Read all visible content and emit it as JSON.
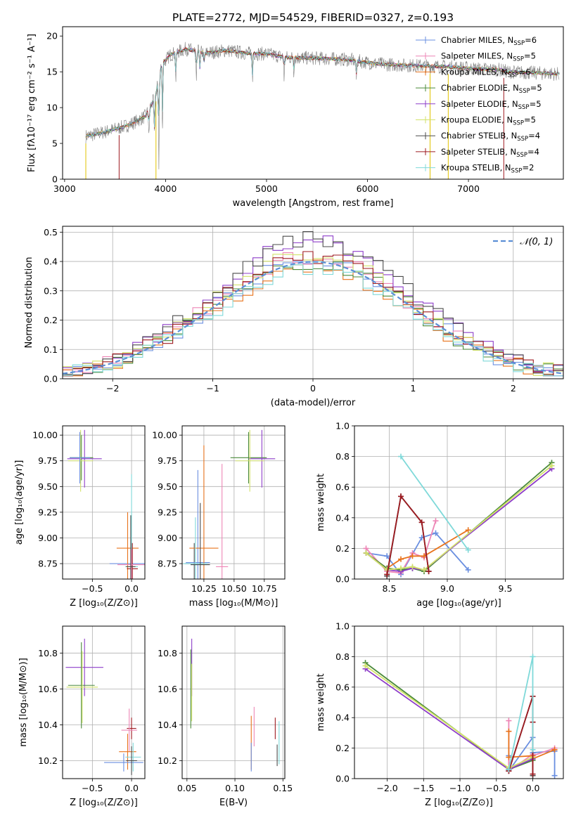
{
  "figure": {
    "title": "PLATE=2772, MJD=54529, FIBERID=0327, z=0.193"
  },
  "colors": {
    "chabrier_miles": "#6a8fe0",
    "salpeter_miles": "#ee86b6",
    "kroupa_miles": "#e8731c",
    "chabrier_elodie": "#4a8a3a",
    "salpeter_elodie": "#8e3ec9",
    "kroupa_elodie": "#d2e26a",
    "chabrier_stelib": "#4b4b4b",
    "salpeter_stelib": "#9e1a20",
    "kroupa_stelib": "#7fd9d9",
    "gauss": "#5b8fd6",
    "data": "#808080"
  },
  "chart_data": [
    {
      "id": "spectrum",
      "type": "line",
      "xlabel": "wavelength [Angstrom, rest frame]",
      "ylabel": "Flux [fλ10⁻¹⁷ erg cm⁻² s⁻¹ A⁻¹]",
      "xlim": [
        2980,
        7940
      ],
      "ylim": [
        0,
        21.3
      ],
      "xticks": [
        3000,
        4000,
        5000,
        6000,
        7000
      ],
      "yticks": [
        0,
        5,
        10,
        15,
        20
      ],
      "legend_position": "upper-right",
      "legend": [
        {
          "label": "Chabrier MILES, N",
          "sub": "SSP",
          "tail": "=6",
          "color": "#6a8fe0"
        },
        {
          "label": "Salpeter MILES, N",
          "sub": "SSP",
          "tail": "=5",
          "color": "#ee86b6"
        },
        {
          "label": "Kroupa MILES, N",
          "sub": "SSP",
          "tail": "=6",
          "color": "#e8731c"
        },
        {
          "label": "Chabrier ELODIE, N",
          "sub": "SSP",
          "tail": "=5",
          "color": "#4a8a3a"
        },
        {
          "label": "Salpeter ELODIE, N",
          "sub": "SSP",
          "tail": "=5",
          "color": "#8e3ec9"
        },
        {
          "label": "Kroupa ELODIE, N",
          "sub": "SSP",
          "tail": "=5",
          "color": "#d2e26a"
        },
        {
          "label": "Chabrier STELIB, N",
          "sub": "SSP",
          "tail": "=4",
          "color": "#4b4b4b"
        },
        {
          "label": "Salpeter STELIB, N",
          "sub": "SSP",
          "tail": "=4",
          "color": "#9e1a20"
        },
        {
          "label": "Kroupa STELIB, N",
          "sub": "SSP",
          "tail": "=2",
          "color": "#7fd9d9"
        }
      ],
      "continuum_knots": [
        [
          3210,
          6.0
        ],
        [
          3400,
          6.6
        ],
        [
          3600,
          7.4
        ],
        [
          3700,
          8.0
        ],
        [
          3800,
          8.8
        ],
        [
          3900,
          11.5
        ],
        [
          3960,
          16.0
        ],
        [
          4050,
          17.4
        ],
        [
          4200,
          18.2
        ],
        [
          4400,
          17.6
        ],
        [
          4600,
          18.0
        ],
        [
          4800,
          17.6
        ],
        [
          5000,
          17.5
        ],
        [
          5200,
          17.0
        ],
        [
          5500,
          16.9
        ],
        [
          5800,
          16.7
        ],
        [
          6100,
          16.1
        ],
        [
          6400,
          15.9
        ],
        [
          6800,
          15.7
        ],
        [
          7100,
          15.4
        ],
        [
          7300,
          15.3
        ],
        [
          7400,
          15.0
        ],
        [
          7900,
          14.7
        ]
      ],
      "absorption_features": [
        [
          3835,
          4.2
        ],
        [
          3889,
          5.5
        ],
        [
          3934,
          12
        ],
        [
          3969,
          9
        ],
        [
          4102,
          4
        ],
        [
          4305,
          5
        ],
        [
          4341,
          3
        ],
        [
          4383,
          2
        ],
        [
          4861,
          4
        ],
        [
          5175,
          3
        ],
        [
          5270,
          2
        ],
        [
          5890,
          2.5
        ]
      ],
      "model_starts": [
        3210,
        3210,
        3210,
        3210,
        3210,
        3210,
        3210,
        3540,
        3210
      ]
    },
    {
      "id": "residuals",
      "type": "histogram",
      "xlabel": "(data-model)/error",
      "ylabel": "Normed distribution",
      "xlim": [
        -2.5,
        2.5
      ],
      "ylim": [
        0,
        0.52
      ],
      "xticks": [
        -2,
        -1,
        0,
        1,
        2
      ],
      "yticks": [
        0.0,
        0.1,
        0.2,
        0.3,
        0.4,
        0.5
      ],
      "bin_width": 0.1,
      "legend": {
        "label": "𝒩(0, 1)",
        "position": "upper-right"
      },
      "series_peak_heights": [
        0.42,
        0.44,
        0.4,
        0.42,
        0.5,
        0.45,
        0.5,
        0.44,
        0.4
      ]
    },
    {
      "id": "age_vs_Z",
      "type": "errorbar",
      "xlabel": "Z [log₁₀(Z/Z⊙)]",
      "ylabel": "age  [log₁₀(age/yr)]",
      "xlim": [
        -0.88,
        0.17
      ],
      "ylim": [
        8.6,
        10.09
      ],
      "xticks": [
        -0.5,
        0.0
      ],
      "xticklabels": [
        "−0.5",
        "0.0"
      ],
      "yticks": [
        8.75,
        9.0,
        9.25,
        9.5,
        9.75,
        10.0
      ],
      "points": [
        {
          "x": -0.64,
          "y": 9.78,
          "xerr": 0.15,
          "yerr": 0.22,
          "color": "#4a8a3a"
        },
        {
          "x": -0.6,
          "y": 9.77,
          "xerr": 0.22,
          "yerr": 0.28,
          "color": "#8e3ec9"
        },
        {
          "x": -0.65,
          "y": 9.75,
          "xerr": 0.16,
          "yerr": 0.3,
          "color": "#d2e26a"
        },
        {
          "x": -0.66,
          "y": 9.78,
          "xerr": 0.13,
          "yerr": 0.25,
          "color": "#6a8fe0"
        },
        {
          "x": 0.0,
          "y": 8.75,
          "xerr": 0.28,
          "yerr": 0.1,
          "color": "#6a8fe0"
        },
        {
          "x": -0.05,
          "y": 8.9,
          "xerr": 0.14,
          "yerr": 0.35,
          "color": "#e8731c"
        },
        {
          "x": 0.0,
          "y": 8.72,
          "xerr": 0.08,
          "yerr": 0.9,
          "color": "#7fd9d9"
        },
        {
          "x": 0.01,
          "y": 8.7,
          "xerr": 0.07,
          "yerr": 0.25,
          "color": "#9e1a20"
        },
        {
          "x": 0.0,
          "y": 8.74,
          "xerr": 0.18,
          "yerr": 0.15,
          "color": "#ee86b6"
        },
        {
          "x": -0.01,
          "y": 8.72,
          "xerr": 0.06,
          "yerr": 0.5,
          "color": "#4b4b4b"
        }
      ]
    },
    {
      "id": "age_vs_mass",
      "type": "errorbar",
      "xlabel": "mass [log₁₀(M/M⊙)]",
      "ylabel": "",
      "xlim": [
        10.07,
        10.92
      ],
      "ylim": [
        8.6,
        10.09
      ],
      "xticks": [
        10.25,
        10.5,
        10.75
      ],
      "yticks": [
        8.75,
        9.0,
        9.25,
        9.5,
        9.75,
        10.0
      ],
      "points": [
        {
          "x": 10.62,
          "y": 9.78,
          "xerr": 0.15,
          "yerr": 0.25,
          "color": "#4a8a3a"
        },
        {
          "x": 10.73,
          "y": 9.77,
          "xerr": 0.11,
          "yerr": 0.28,
          "color": "#8e3ec9"
        },
        {
          "x": 10.63,
          "y": 9.75,
          "xerr": 0.12,
          "yerr": 0.3,
          "color": "#d2e26a"
        },
        {
          "x": 10.17,
          "y": 8.75,
          "xerr": 0.08,
          "yerr": 0.2,
          "color": "#4b4b4b"
        },
        {
          "x": 10.2,
          "y": 8.76,
          "xerr": 0.1,
          "yerr": 0.9,
          "color": "#6a8fe0"
        },
        {
          "x": 10.25,
          "y": 8.9,
          "xerr": 0.12,
          "yerr": 1.0,
          "color": "#e8731c"
        },
        {
          "x": 10.4,
          "y": 8.72,
          "xerr": 0.05,
          "yerr": 1.0,
          "color": "#ee86b6"
        },
        {
          "x": 10.18,
          "y": 8.75,
          "xerr": 0.1,
          "yerr": 0.45,
          "color": "#7fd9d9"
        },
        {
          "x": 10.22,
          "y": 8.74,
          "xerr": 0.08,
          "yerr": 0.6,
          "color": "#4b4b4b"
        }
      ]
    },
    {
      "id": "massweight_vs_age",
      "type": "line",
      "xlabel": "age  [log₁₀(age/yr)]",
      "ylabel": "mass weight",
      "xlim": [
        8.2,
        10.0
      ],
      "ylim": [
        0,
        1.0
      ],
      "xticks": [
        8.5,
        9.0,
        9.5
      ],
      "yticks": [
        0.0,
        0.2,
        0.4,
        0.6,
        0.8,
        1.0
      ],
      "series": [
        {
          "name": "Chabrier MILES",
          "color": "#6a8fe0",
          "x": [
            8.3,
            8.48,
            8.6,
            8.78,
            8.9,
            9.18
          ],
          "y": [
            0.17,
            0.15,
            0.03,
            0.27,
            0.3,
            0.06
          ]
        },
        {
          "name": "Salpeter MILES",
          "color": "#ee86b6",
          "x": [
            8.3,
            8.48,
            8.6,
            8.7,
            8.8,
            8.9
          ],
          "y": [
            0.2,
            0.05,
            0.04,
            0.17,
            0.14,
            0.38
          ]
        },
        {
          "name": "Kroupa MILES",
          "color": "#e8731c",
          "x": [
            8.3,
            8.48,
            8.6,
            8.7,
            8.8,
            9.18
          ],
          "y": [
            0.17,
            0.07,
            0.13,
            0.15,
            0.15,
            0.32
          ]
        },
        {
          "name": "Chabrier ELODIE",
          "color": "#4a8a3a",
          "x": [
            8.3,
            8.48,
            8.6,
            8.7,
            8.8,
            9.9
          ],
          "y": [
            0.17,
            0.07,
            0.06,
            0.07,
            0.05,
            0.76
          ]
        },
        {
          "name": "Salpeter ELODIE",
          "color": "#8e3ec9",
          "x": [
            8.3,
            8.48,
            8.6,
            8.7,
            8.8,
            9.9
          ],
          "y": [
            0.17,
            0.06,
            0.05,
            0.07,
            0.06,
            0.72
          ]
        },
        {
          "name": "Kroupa ELODIE",
          "color": "#d2e26a",
          "x": [
            8.3,
            8.48,
            8.6,
            8.7,
            8.8,
            9.9
          ],
          "y": [
            0.17,
            0.06,
            0.07,
            0.08,
            0.06,
            0.74
          ]
        },
        {
          "name": "Chabrier STELIB",
          "color": "#4b4b4b",
          "x": [
            8.48,
            8.6,
            8.78,
            8.84
          ],
          "y": [
            0.02,
            0.54,
            0.37,
            0.05
          ]
        },
        {
          "name": "Salpeter STELIB",
          "color": "#9e1a20",
          "x": [
            8.48,
            8.6,
            8.78,
            8.84
          ],
          "y": [
            0.03,
            0.54,
            0.37,
            0.05
          ]
        },
        {
          "name": "Kroupa STELIB",
          "color": "#7fd9d9",
          "x": [
            8.6,
            9.18
          ],
          "y": [
            0.8,
            0.19
          ]
        }
      ]
    },
    {
      "id": "mass_vs_Z",
      "type": "errorbar",
      "xlabel": "Z [log₁₀(Z/Z⊙)]",
      "ylabel": "mass [log₁₀(M/M⊙)]",
      "xlim": [
        -0.88,
        0.17
      ],
      "ylim": [
        10.1,
        10.95
      ],
      "xticks": [
        -0.5,
        0.0
      ],
      "xticklabels": [
        "−0.5",
        "0.0"
      ],
      "yticks": [
        10.2,
        10.4,
        10.6,
        10.8
      ],
      "points": [
        {
          "x": -0.6,
          "y": 10.72,
          "xerr": 0.24,
          "yerr": 0.16,
          "color": "#8e3ec9"
        },
        {
          "x": -0.64,
          "y": 10.62,
          "xerr": 0.17,
          "yerr": 0.24,
          "color": "#4a8a3a"
        },
        {
          "x": -0.63,
          "y": 10.61,
          "xerr": 0.2,
          "yerr": 0.2,
          "color": "#d2e26a"
        },
        {
          "x": 0.0,
          "y": 10.38,
          "xerr": 0.06,
          "yerr": 0.06,
          "color": "#9e1a20"
        },
        {
          "x": -0.03,
          "y": 10.37,
          "xerr": 0.1,
          "yerr": 0.12,
          "color": "#ee86b6"
        },
        {
          "x": -0.05,
          "y": 10.25,
          "xerr": 0.11,
          "yerr": 0.1,
          "color": "#e8731c"
        },
        {
          "x": 0.02,
          "y": 10.22,
          "xerr": 0.1,
          "yerr": 0.08,
          "color": "#7fd9d9"
        },
        {
          "x": -0.1,
          "y": 10.19,
          "xerr": 0.25,
          "yerr": 0.05,
          "color": "#6a8fe0"
        },
        {
          "x": 0.0,
          "y": 10.2,
          "xerr": 0.07,
          "yerr": 0.08,
          "color": "#4b4b4b"
        }
      ]
    },
    {
      "id": "mass_vs_EBV",
      "type": "errorbar",
      "xlabel": "E(B-V)",
      "ylabel": "",
      "xlim": [
        0.045,
        0.152
      ],
      "ylim": [
        10.1,
        10.95
      ],
      "xticks": [
        0.05,
        0.1,
        0.15
      ],
      "yticks": [
        10.2,
        10.4,
        10.6,
        10.8
      ],
      "points": [
        {
          "x": 0.055,
          "y": 10.72,
          "xerr": 0.0,
          "yerr": 0.16,
          "color": "#8e3ec9"
        },
        {
          "x": 0.054,
          "y": 10.6,
          "xerr": 0.0,
          "yerr": 0.22,
          "color": "#4a8a3a"
        },
        {
          "x": 0.055,
          "y": 10.58,
          "xerr": 0.0,
          "yerr": 0.16,
          "color": "#d2e26a"
        },
        {
          "x": 0.12,
          "y": 10.39,
          "xerr": 0.0,
          "yerr": 0.11,
          "color": "#ee86b6"
        },
        {
          "x": 0.117,
          "y": 10.3,
          "xerr": 0.0,
          "yerr": 0.15,
          "color": "#e8731c"
        },
        {
          "x": 0.117,
          "y": 10.22,
          "xerr": 0.0,
          "yerr": 0.08,
          "color": "#6a8fe0"
        },
        {
          "x": 0.142,
          "y": 10.38,
          "xerr": 0.0,
          "yerr": 0.06,
          "color": "#9e1a20"
        },
        {
          "x": 0.146,
          "y": 10.3,
          "xerr": 0.0,
          "yerr": 0.12,
          "color": "#7fd9d9"
        },
        {
          "x": 0.144,
          "y": 10.23,
          "xerr": 0.0,
          "yerr": 0.06,
          "color": "#4b4b4b"
        }
      ]
    },
    {
      "id": "massweight_vs_Z",
      "type": "line",
      "xlabel": "Z [log₁₀(Z/Z⊙)]",
      "ylabel": "mass weight",
      "xlim": [
        -2.45,
        0.42
      ],
      "ylim": [
        0,
        1.0
      ],
      "xticks": [
        -2.0,
        -1.5,
        -1.0,
        -0.5,
        0.0
      ],
      "xticklabels": [
        "−2.0",
        "−1.5",
        "−1.0",
        "−0.5",
        "0.0"
      ],
      "yticks": [
        0.0,
        0.2,
        0.4,
        0.6,
        0.8,
        1.0
      ],
      "series": [
        {
          "name": "Chabrier MILES",
          "color": "#6a8fe0",
          "x": [
            -0.33,
            -0.33,
            0.0,
            0.0,
            0.3,
            0.3
          ],
          "y": [
            0.15,
            0.05,
            0.27,
            0.17,
            0.18,
            0.02
          ]
        },
        {
          "name": "Salpeter MILES",
          "color": "#ee86b6",
          "x": [
            -0.33,
            -0.33,
            0.0,
            0.0,
            0.3
          ],
          "y": [
            0.38,
            0.05,
            0.16,
            0.15,
            0.2
          ]
        },
        {
          "name": "Kroupa MILES",
          "color": "#e8731c",
          "x": [
            -0.33,
            -0.33,
            0.0,
            0.0,
            0.3
          ],
          "y": [
            0.31,
            0.14,
            0.15,
            0.13,
            0.19
          ]
        },
        {
          "name": "Chabrier ELODIE",
          "color": "#4a8a3a",
          "x": [
            -2.3,
            -0.33,
            0.0
          ],
          "y": [
            0.76,
            0.06,
            0.12
          ]
        },
        {
          "name": "Salpeter ELODIE",
          "color": "#8e3ec9",
          "x": [
            -2.3,
            -0.33,
            0.0
          ],
          "y": [
            0.72,
            0.06,
            0.13
          ]
        },
        {
          "name": "Kroupa ELODIE",
          "color": "#d2e26a",
          "x": [
            -2.3,
            -0.33,
            0.0
          ],
          "y": [
            0.74,
            0.07,
            0.14
          ]
        },
        {
          "name": "Chabrier STELIB",
          "color": "#4b4b4b",
          "x": [
            -0.33,
            0.0,
            0.0,
            0.0
          ],
          "y": [
            0.05,
            0.54,
            0.37,
            0.02
          ]
        },
        {
          "name": "Salpeter STELIB",
          "color": "#9e1a20",
          "x": [
            -0.33,
            0.0,
            0.0,
            0.0
          ],
          "y": [
            0.05,
            0.54,
            0.37,
            0.03
          ]
        },
        {
          "name": "Kroupa STELIB",
          "color": "#7fd9d9",
          "x": [
            -0.33,
            0.0,
            0.0
          ],
          "y": [
            0.06,
            0.8,
            0.19
          ]
        }
      ]
    }
  ]
}
